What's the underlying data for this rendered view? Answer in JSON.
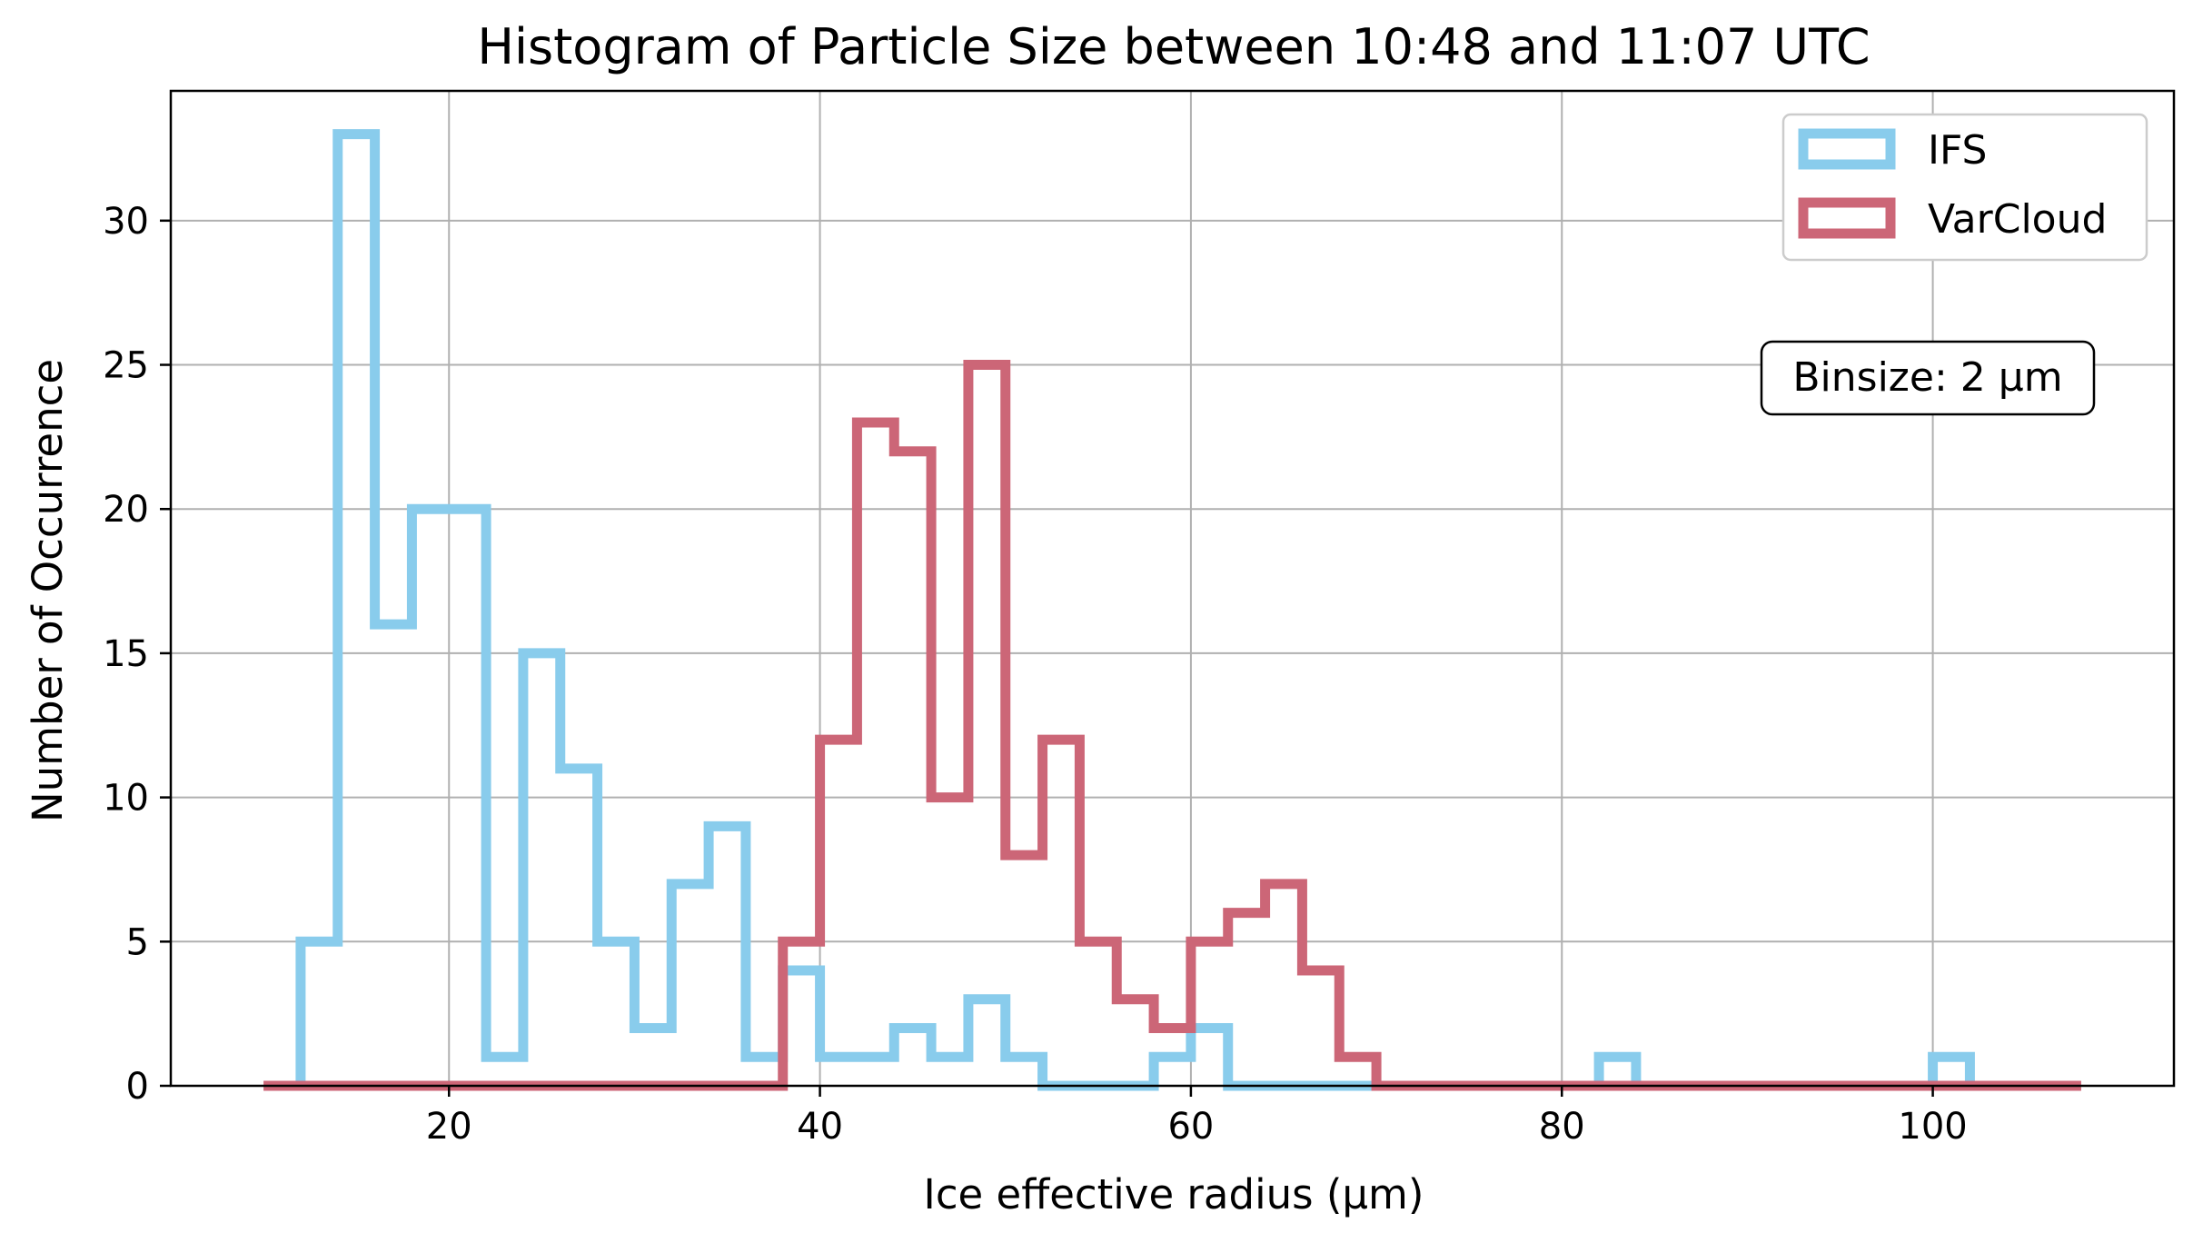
{
  "chart_data": {
    "type": "histogram",
    "title": "Histogram of Particle Size between 10:48 and 11:07 UTC",
    "xlabel": "Ice effective radius (μm)",
    "ylabel": "Number of Occurrence",
    "xlim": [
      5,
      113
    ],
    "ylim": [
      0,
      34.5
    ],
    "xticks": [
      20,
      40,
      60,
      80,
      100
    ],
    "yticks": [
      0,
      5,
      10,
      15,
      20,
      25,
      30
    ],
    "grid": true,
    "legend_position": "top-right",
    "annotation": "Binsize: 2 μm",
    "bin_width": 2,
    "series": [
      {
        "name": "IFS",
        "color": "#89CCEC",
        "bin_edges": [
          12,
          14,
          16,
          18,
          20,
          22,
          24,
          26,
          28,
          30,
          32,
          34,
          36,
          38,
          40,
          42,
          44,
          46,
          48,
          50,
          52,
          54,
          56,
          58,
          60,
          62,
          64,
          66,
          68,
          70,
          72,
          74,
          76,
          78,
          80,
          82,
          84,
          86,
          88,
          90,
          92,
          94,
          96,
          98,
          100,
          102
        ],
        "counts": [
          5,
          33,
          16,
          20,
          20,
          1,
          15,
          11,
          5,
          2,
          7,
          9,
          1,
          4,
          1,
          1,
          2,
          1,
          3,
          1,
          0,
          0,
          0,
          1,
          2,
          0,
          0,
          0,
          0,
          0,
          0,
          0,
          0,
          0,
          0,
          1,
          0,
          0,
          0,
          0,
          0,
          0,
          0,
          0,
          1
        ]
      },
      {
        "name": "VarCloud",
        "color": "#CC6677",
        "bin_edges": [
          10,
          38,
          40,
          42,
          44,
          46,
          48,
          50,
          52,
          54,
          56,
          58,
          60,
          62,
          64,
          66,
          68,
          70,
          108
        ],
        "counts": [
          0,
          5,
          12,
          23,
          22,
          10,
          25,
          8,
          12,
          5,
          3,
          2,
          5,
          6,
          7,
          4,
          1,
          0
        ]
      }
    ]
  }
}
